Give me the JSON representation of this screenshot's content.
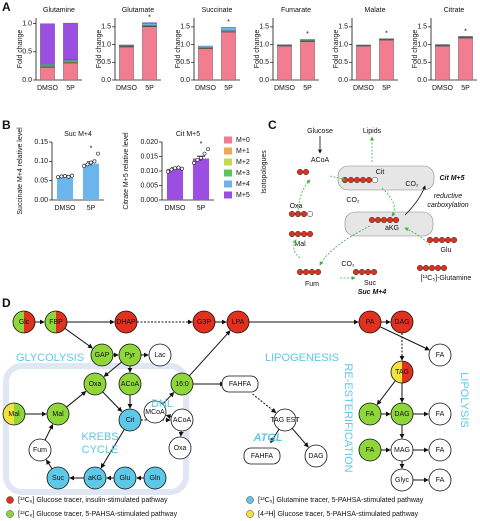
{
  "panel_labels": [
    "A",
    "B",
    "C",
    "D"
  ],
  "chart_data": [
    {
      "type": "stacked-bar",
      "title": "Glutamine",
      "ylabel": "Fold change",
      "categories": [
        "DMSO",
        "5P"
      ],
      "ylim": [
        0,
        1.1
      ],
      "yticks": [
        {
          "value": 0,
          "label": "0.0"
        },
        {
          "value": 0.5,
          "label": "0.5"
        },
        {
          "value": 1,
          "label": "1.0"
        }
      ],
      "legend_title": "Isotopologues",
      "series": [
        {
          "name": "M+0",
          "color": "#f27c90",
          "values": [
            0.22,
            0.3
          ]
        },
        {
          "name": "M+1",
          "color": "#f5a55a",
          "values": [
            0.01,
            0.01
          ]
        },
        {
          "name": "M+2",
          "color": "#c6d94a",
          "values": [
            0.01,
            0.01
          ]
        },
        {
          "name": "M+3",
          "color": "#5cc45c",
          "values": [
            0.02,
            0.02
          ]
        },
        {
          "name": "M+4",
          "color": "#6cb4ec",
          "values": [
            0.02,
            0.02
          ]
        },
        {
          "name": "M+5",
          "color": "#9a4fe0",
          "values": [
            0.72,
            0.65
          ]
        }
      ],
      "significance": [
        null,
        null
      ]
    },
    {
      "type": "stacked-bar",
      "title": "Glutamate",
      "ylabel": "Fold change",
      "categories": [
        "DMSO",
        "5P"
      ],
      "ylim": [
        0,
        1.75
      ],
      "yticks": [
        {
          "value": 0,
          "label": "0.0"
        },
        {
          "value": 0.5,
          "label": "0.5"
        },
        {
          "value": 1,
          "label": "1.0"
        },
        {
          "value": 1.5,
          "label": "1.5"
        }
      ],
      "series": [
        {
          "name": "M+0",
          "color": "#f27c90",
          "values": [
            0.93,
            1.5
          ]
        },
        {
          "name": "M+1",
          "color": "#f5a55a",
          "values": [
            0.01,
            0.01
          ]
        },
        {
          "name": "M+2",
          "color": "#c6d94a",
          "values": [
            0.01,
            0.01
          ]
        },
        {
          "name": "M+3",
          "color": "#5cc45c",
          "values": [
            0.01,
            0.02
          ]
        },
        {
          "name": "M+4",
          "color": "#6cb4ec",
          "values": [
            0.02,
            0.06
          ]
        },
        {
          "name": "M+5",
          "color": "#9a4fe0",
          "values": [
            0.01,
            0.02
          ]
        }
      ],
      "significance": [
        null,
        "*"
      ]
    },
    {
      "type": "stacked-bar",
      "title": "Succinate",
      "ylabel": "Fold change",
      "categories": [
        "DMSO",
        "5P"
      ],
      "ylim": [
        0,
        1.75
      ],
      "yticks": [
        {
          "value": 0,
          "label": "0.0"
        },
        {
          "value": 0.5,
          "label": "0.5"
        },
        {
          "value": 1,
          "label": "1.0"
        },
        {
          "value": 1.5,
          "label": "1.5"
        }
      ],
      "series": [
        {
          "name": "M+0",
          "color": "#f27c90",
          "values": [
            0.88,
            1.35
          ]
        },
        {
          "name": "M+1",
          "color": "#f5a55a",
          "values": [
            0.01,
            0.01
          ]
        },
        {
          "name": "M+2",
          "color": "#c6d94a",
          "values": [
            0.01,
            0.01
          ]
        },
        {
          "name": "M+3",
          "color": "#5cc45c",
          "values": [
            0.01,
            0.02
          ]
        },
        {
          "name": "M+4",
          "color": "#6cb4ec",
          "values": [
            0.05,
            0.1
          ]
        },
        {
          "name": "M+5",
          "color": "#9a4fe0",
          "values": [
            0,
            0
          ]
        }
      ],
      "significance": [
        null,
        "*"
      ]
    },
    {
      "type": "stacked-bar",
      "title": "Fumarate",
      "ylabel": "Fold change",
      "categories": [
        "DMSO",
        "5P"
      ],
      "ylim": [
        0,
        1.75
      ],
      "yticks": [
        {
          "value": 0,
          "label": "0.0"
        },
        {
          "value": 0.5,
          "label": "0.5"
        },
        {
          "value": 1,
          "label": "1.0"
        },
        {
          "value": 1.5,
          "label": "1.5"
        }
      ],
      "series": [
        {
          "name": "M+0",
          "color": "#f27c90",
          "values": [
            0.95,
            1.08
          ]
        },
        {
          "name": "M+1",
          "color": "#f5a55a",
          "values": [
            0.01,
            0.01
          ]
        },
        {
          "name": "M+2",
          "color": "#c6d94a",
          "values": [
            0.01,
            0.01
          ]
        },
        {
          "name": "M+3",
          "color": "#5cc45c",
          "values": [
            0.01,
            0.02
          ]
        },
        {
          "name": "M+4",
          "color": "#6cb4ec",
          "values": [
            0.02,
            0.03
          ]
        },
        {
          "name": "M+5",
          "color": "#9a4fe0",
          "values": [
            0,
            0
          ]
        }
      ],
      "significance": [
        null,
        "*"
      ]
    },
    {
      "type": "stacked-bar",
      "title": "Malate",
      "ylabel": "Fold change",
      "categories": [
        "DMSO",
        "5P"
      ],
      "ylim": [
        0,
        1.75
      ],
      "yticks": [
        {
          "value": 0,
          "label": "0.0"
        },
        {
          "value": 0.5,
          "label": "0.5"
        },
        {
          "value": 1,
          "label": "1.0"
        },
        {
          "value": 1.5,
          "label": "1.5"
        }
      ],
      "series": [
        {
          "name": "M+0",
          "color": "#f27c90",
          "values": [
            0.95,
            1.12
          ]
        },
        {
          "name": "M+1",
          "color": "#f5a55a",
          "values": [
            0.01,
            0.01
          ]
        },
        {
          "name": "M+2",
          "color": "#c6d94a",
          "values": [
            0.01,
            0.01
          ]
        },
        {
          "name": "M+3",
          "color": "#5cc45c",
          "values": [
            0.01,
            0.01
          ]
        },
        {
          "name": "M+4",
          "color": "#6cb4ec",
          "values": [
            0.01,
            0.02
          ]
        },
        {
          "name": "M+5",
          "color": "#9a4fe0",
          "values": [
            0,
            0
          ]
        }
      ],
      "significance": [
        null,
        "*"
      ]
    },
    {
      "type": "stacked-bar",
      "title": "Citrate",
      "ylabel": "Fold change",
      "categories": [
        "DMSO",
        "5P"
      ],
      "ylim": [
        0,
        1.75
      ],
      "yticks": [
        {
          "value": 0,
          "label": "0.0"
        },
        {
          "value": 0.5,
          "label": "0.5"
        },
        {
          "value": 1,
          "label": "1.0"
        },
        {
          "value": 1.5,
          "label": "1.5"
        }
      ],
      "series": [
        {
          "name": "M+0",
          "color": "#f27c90",
          "values": [
            0.95,
            1.18
          ]
        },
        {
          "name": "M+1",
          "color": "#f5a55a",
          "values": [
            0.01,
            0.01
          ]
        },
        {
          "name": "M+2",
          "color": "#c6d94a",
          "values": [
            0.01,
            0.01
          ]
        },
        {
          "name": "M+3",
          "color": "#5cc45c",
          "values": [
            0.01,
            0.01
          ]
        },
        {
          "name": "M+4",
          "color": "#6cb4ec",
          "values": [
            0.01,
            0.01
          ]
        },
        {
          "name": "M+5",
          "color": "#9a4fe0",
          "values": [
            0.01,
            0.01
          ]
        }
      ],
      "significance": [
        null,
        "*"
      ]
    },
    {
      "type": "bar",
      "title": "Suc M+4",
      "ylabel": "Succinate M+4 relative level",
      "categories": [
        "DMSO",
        "5P"
      ],
      "color": "#6cb4ec",
      "values": [
        0.061,
        0.094
      ],
      "errors": [
        0.002,
        0.005
      ],
      "points": [
        [
          0.059,
          0.061,
          0.062,
          0.06,
          0.063
        ],
        [
          0.088,
          0.092,
          0.097,
          0.1,
          0.12
        ]
      ],
      "ylim": [
        0,
        0.15
      ],
      "yticks": [
        {
          "value": 0,
          "label": "0.00"
        },
        {
          "value": 0.05,
          "label": "0.05"
        },
        {
          "value": 0.1,
          "label": "0.10"
        },
        {
          "value": 0.15,
          "label": "0.15"
        }
      ],
      "significance": [
        null,
        "*"
      ]
    },
    {
      "type": "bar",
      "title": "Cit M+5",
      "ylabel": "Citrate M+5 relative level",
      "categories": [
        "DMSO",
        "5P"
      ],
      "color": "#9a4fe0",
      "values": [
        0.0107,
        0.0143
      ],
      "errors": [
        0.0004,
        0.0008
      ],
      "points": [
        [
          0.0098,
          0.0105,
          0.011,
          0.0112,
          0.0108
        ],
        [
          0.0128,
          0.0138,
          0.0145,
          0.016,
          0.0175
        ]
      ],
      "ylim": [
        0,
        0.02
      ],
      "yticks": [
        {
          "value": 0,
          "label": "0.000"
        },
        {
          "value": 0.005,
          "label": "0.005"
        },
        {
          "value": 0.01,
          "label": "0.010"
        },
        {
          "value": 0.015,
          "label": "0.015"
        },
        {
          "value": 0.02,
          "label": "0.020"
        }
      ],
      "significance": [
        null,
        "*"
      ]
    }
  ],
  "diagram_c": {
    "labels": [
      "Glucose",
      "Lipids",
      "ACoA",
      "Cit",
      "Cit M+5",
      "Oxa",
      "CO₂",
      "CO₂",
      "reductive",
      "carboxylation",
      "aKG",
      "Mal",
      "CO₂",
      "Glu",
      "Fum",
      "Suc",
      "Suc M+4",
      "[¹³C₅]-Glutamine"
    ]
  },
  "diagram_d": {
    "nodes": [
      "Glc",
      "FBP",
      "DHAP",
      "G3P",
      "LPA",
      "PA",
      "DAG",
      "GAP",
      "Pyr",
      "Lac",
      "TAG",
      "FA",
      "Oxa",
      "ACoA",
      "16:0",
      "FAHFA",
      "Mal",
      "Mal",
      "MCoA",
      "ACoA",
      "Cit",
      "TAG EST",
      "FA",
      "DAG",
      "FA",
      "Fum",
      "Oxa",
      "FAHFA",
      "DAG",
      "FA",
      "MAG",
      "FA",
      "Suc",
      "aKG",
      "Glu",
      "Gln",
      "Glyc",
      "FA"
    ],
    "labels": [
      "GLYCOLYSIS",
      "LIPOGENESIS",
      "KREBS",
      "CYCLE",
      "DNL",
      "RE-ESTERIFICATION",
      "LIPOLYSIS",
      "ATGL"
    ],
    "legend": [
      {
        "label": "[¹³C₆] Glucose tracer, insulin-stimulated pathway",
        "color": "#e0301e"
      },
      {
        "label": "[¹³C₅] Glutamine tracer, 5-PAHSA-stimulated pathway",
        "color": "#5ec8e8"
      },
      {
        "label": "[¹³C₆] Glucose tracer, 5-PAHSA-stimulated pathway",
        "color": "#8ed63a"
      },
      {
        "label": "[4-²H] Glucose tracer, 5-PAHSA-stimulated pathway",
        "color": "#f2e33a"
      }
    ]
  }
}
